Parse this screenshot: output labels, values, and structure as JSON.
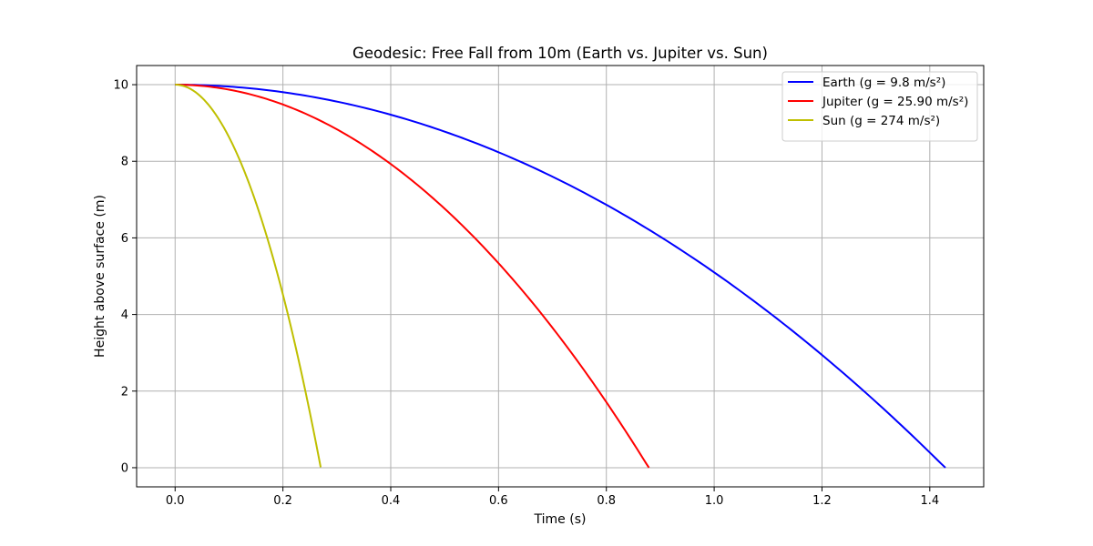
{
  "chart_data": {
    "type": "line",
    "title": "Geodesic: Free Fall from 10m (Earth vs. Jupiter vs. Sun)",
    "xlabel": "Time (s)",
    "ylabel": "Height above surface (m)",
    "xlim": [
      -0.0714,
      1.5
    ],
    "ylim": [
      -0.5,
      10.5
    ],
    "xticks": [
      0.0,
      0.2,
      0.4,
      0.6,
      0.8,
      1.0,
      1.2,
      1.4
    ],
    "xtick_labels": [
      "0.0",
      "0.2",
      "0.4",
      "0.6",
      "0.8",
      "1.0",
      "1.2",
      "1.4"
    ],
    "yticks": [
      0,
      2,
      4,
      6,
      8,
      10
    ],
    "ytick_labels": [
      "0",
      "2",
      "4",
      "6",
      "8",
      "10"
    ],
    "grid": true,
    "legend_position": "top-right",
    "initial_height": 10,
    "series": [
      {
        "name": "Earth (g = 9.8 m/s²)",
        "g": 9.8,
        "t_end": 1.429,
        "color": "#0000ff"
      },
      {
        "name": "Jupiter (g = 25.90 m/s²)",
        "g": 25.9,
        "t_end": 0.879,
        "color": "#ff0000"
      },
      {
        "name": "Sun (g = 274 m/s²)",
        "g": 274,
        "t_end": 0.27,
        "color": "#bfbf00"
      }
    ]
  }
}
